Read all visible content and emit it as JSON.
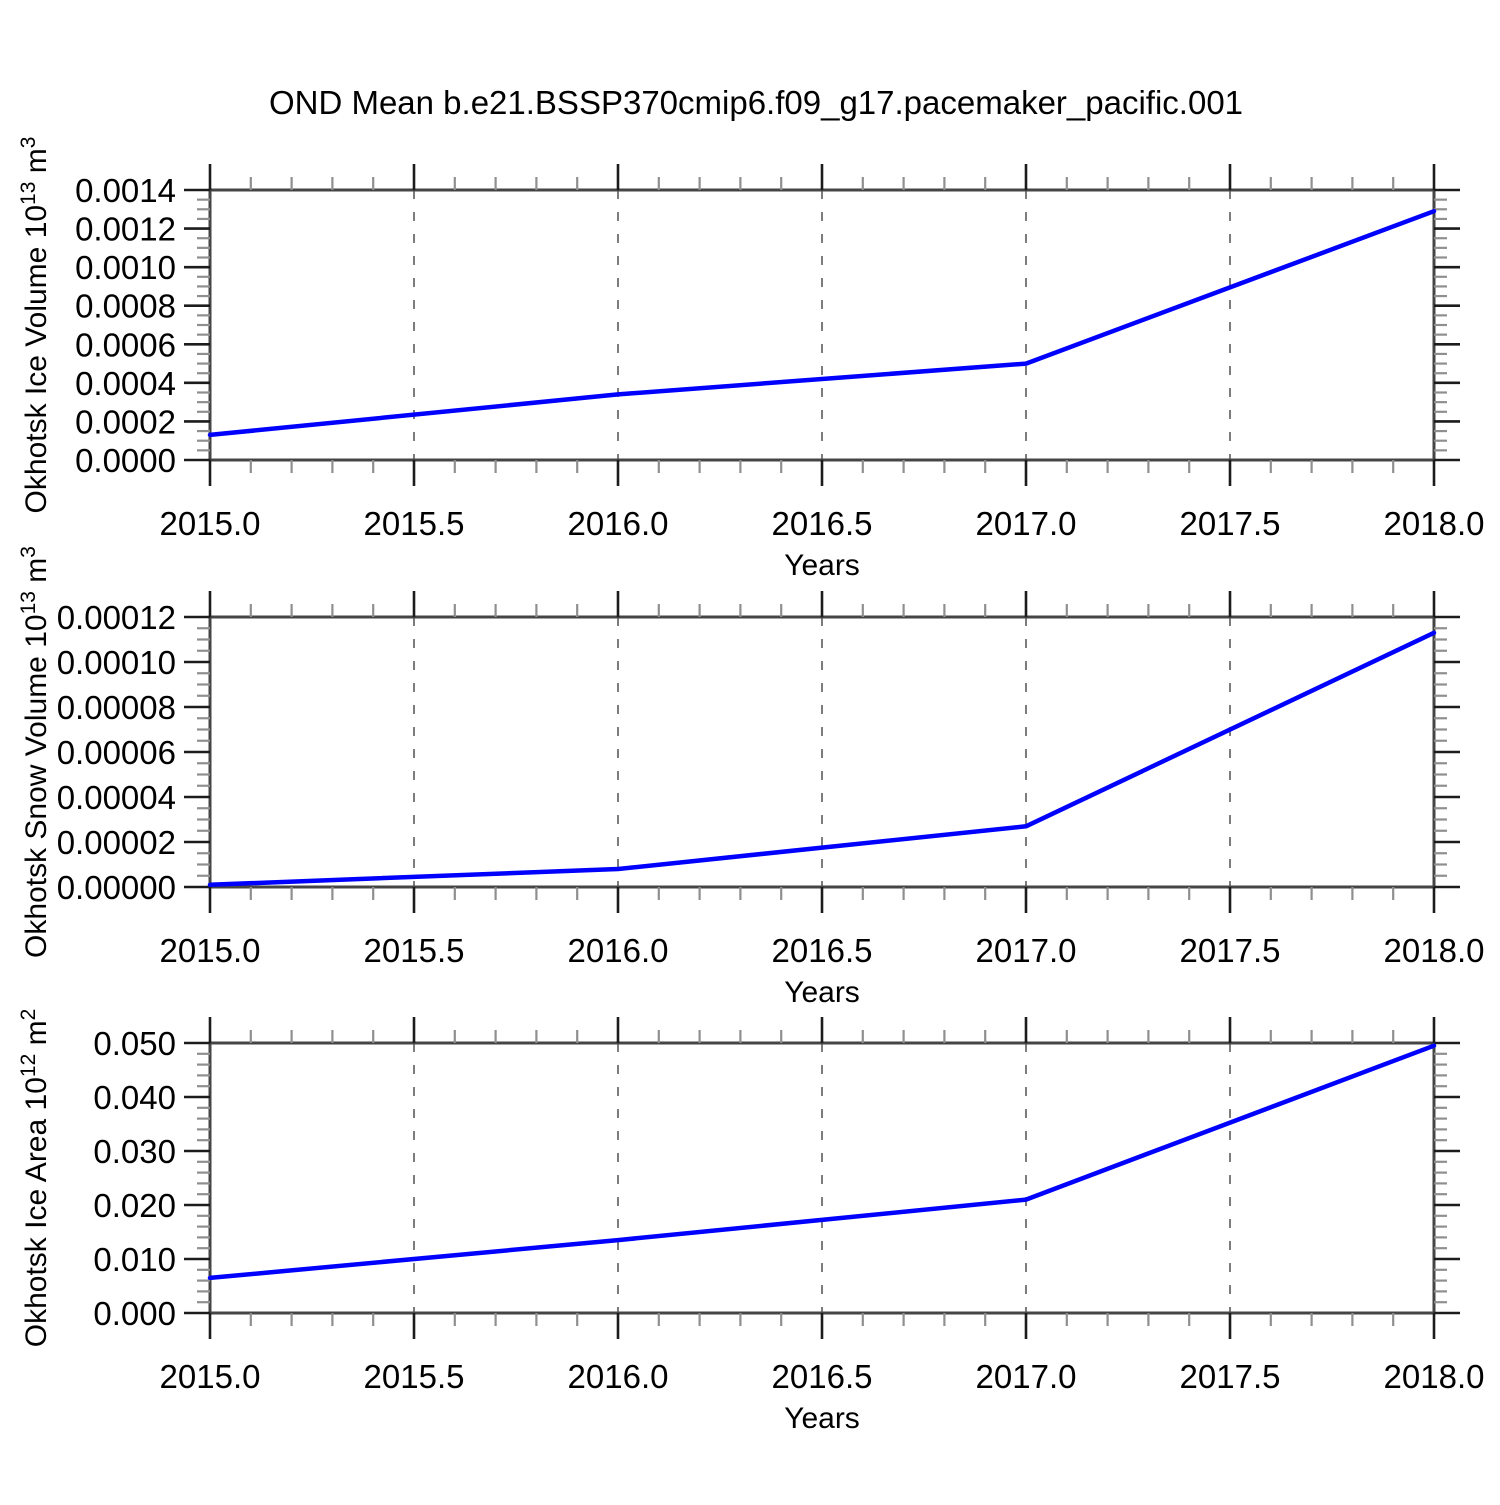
{
  "title": "OND Mean b.e21.BSSP370cmip6.f09_g17.pacemaker_pacific.001",
  "line_color": "#0000ff",
  "chart_data": [
    {
      "type": "line",
      "title": "",
      "xlabel": "Years",
      "ylabel_text": "Okhotsk Ice Volume 10^13 m^3",
      "ylabel_parts": [
        {
          "t": "Okhotsk Ice Volume 10"
        },
        {
          "t": "13",
          "sup": true
        },
        {
          "t": " m"
        },
        {
          "t": "3",
          "sup": true
        }
      ],
      "x": [
        2015.0,
        2016.0,
        2017.0,
        2018.0
      ],
      "values": [
        0.00013,
        0.00034,
        0.0005,
        0.00129
      ],
      "xlim": [
        2015.0,
        2018.0
      ],
      "ylim": [
        0.0,
        0.0014
      ],
      "xticks": [
        2015.0,
        2015.5,
        2016.0,
        2016.5,
        2017.0,
        2017.5,
        2018.0
      ],
      "xtick_labels": [
        "2015.0",
        "2015.5",
        "2016.0",
        "2016.5",
        "2017.0",
        "2017.5",
        "2018.0"
      ],
      "yticks": [
        0.0,
        0.0002,
        0.0004,
        0.0006,
        0.0008,
        0.001,
        0.0012,
        0.0014
      ],
      "ytick_labels": [
        "0.0000",
        "0.0002",
        "0.0004",
        "0.0006",
        "0.0008",
        "0.0010",
        "0.0012",
        "0.0014"
      ],
      "x_minor_step": 0.1,
      "y_minor_step": 5e-05,
      "grid": "vertical-dashed-at-interior-x-majors",
      "line_color": "#0000ff"
    },
    {
      "type": "line",
      "title": "",
      "xlabel": "Years",
      "ylabel_text": "Okhotsk Snow Volume 10^13 m^3",
      "ylabel_parts": [
        {
          "t": "Okhotsk Snow Volume 10"
        },
        {
          "t": "13",
          "sup": true
        },
        {
          "t": " m"
        },
        {
          "t": "3",
          "sup": true
        }
      ],
      "x": [
        2015.0,
        2016.0,
        2017.0,
        2018.0
      ],
      "values": [
        1e-06,
        8e-06,
        2.7e-05,
        0.000113
      ],
      "xlim": [
        2015.0,
        2018.0
      ],
      "ylim": [
        0.0,
        0.00012
      ],
      "xticks": [
        2015.0,
        2015.5,
        2016.0,
        2016.5,
        2017.0,
        2017.5,
        2018.0
      ],
      "xtick_labels": [
        "2015.0",
        "2015.5",
        "2016.0",
        "2016.5",
        "2017.0",
        "2017.5",
        "2018.0"
      ],
      "yticks": [
        0.0,
        2e-05,
        4e-05,
        6e-05,
        8e-05,
        0.0001,
        0.00012
      ],
      "ytick_labels": [
        "0.00000",
        "0.00002",
        "0.00004",
        "0.00006",
        "0.00008",
        "0.00010",
        "0.00012"
      ],
      "x_minor_step": 0.1,
      "y_minor_step": 5e-06,
      "grid": "vertical-dashed-at-interior-x-majors",
      "line_color": "#0000ff"
    },
    {
      "type": "line",
      "title": "",
      "xlabel": "Years",
      "ylabel_text": "Okhotsk Ice Area 10^12 m^2",
      "ylabel_parts": [
        {
          "t": "Okhotsk Ice Area 10"
        },
        {
          "t": "12",
          "sup": true
        },
        {
          "t": " m"
        },
        {
          "t": "2",
          "sup": true
        }
      ],
      "x": [
        2015.0,
        2016.0,
        2017.0,
        2018.0
      ],
      "values": [
        0.0065,
        0.0135,
        0.021,
        0.0495
      ],
      "xlim": [
        2015.0,
        2018.0
      ],
      "ylim": [
        0.0,
        0.05
      ],
      "xticks": [
        2015.0,
        2015.5,
        2016.0,
        2016.5,
        2017.0,
        2017.5,
        2018.0
      ],
      "xtick_labels": [
        "2015.0",
        "2015.5",
        "2016.0",
        "2016.5",
        "2017.0",
        "2017.5",
        "2018.0"
      ],
      "yticks": [
        0.0,
        0.01,
        0.02,
        0.03,
        0.04,
        0.05
      ],
      "ytick_labels": [
        "0.000",
        "0.010",
        "0.020",
        "0.030",
        "0.040",
        "0.050"
      ],
      "x_minor_step": 0.1,
      "y_minor_step": 0.002,
      "grid": "vertical-dashed-at-interior-x-majors",
      "line_color": "#0000ff"
    }
  ]
}
